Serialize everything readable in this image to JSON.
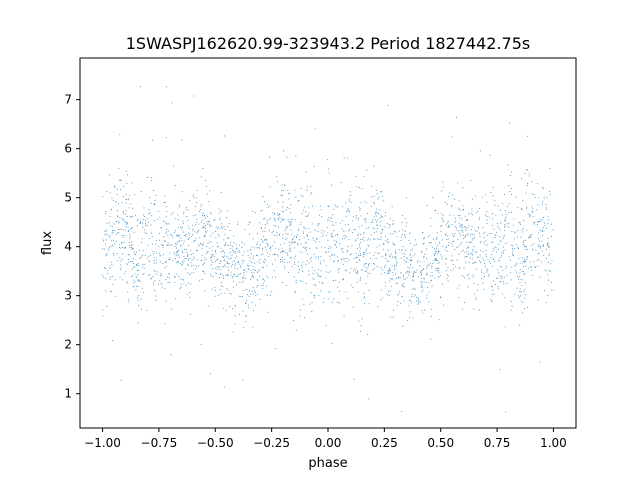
{
  "chart_data": {
    "type": "scatter",
    "title": "1SWASPJ162620.99-323943.2 Period 1827442.75s",
    "xlabel": "phase",
    "ylabel": "flux",
    "xlim": [
      -1.1,
      1.1
    ],
    "ylim": [
      0.3,
      7.85
    ],
    "x_ticks": [
      -1.0,
      -0.75,
      -0.5,
      -0.25,
      0.0,
      0.25,
      0.5,
      0.75,
      1.0
    ],
    "x_tick_labels": [
      "−1.00",
      "−0.75",
      "−0.50",
      "−0.25",
      "0.00",
      "0.25",
      "0.50",
      "0.75",
      "1.00"
    ],
    "y_ticks": [
      1,
      2,
      3,
      4,
      5,
      6,
      7
    ],
    "y_tick_labels": [
      "1",
      "2",
      "3",
      "4",
      "5",
      "6",
      "7"
    ],
    "grid": false,
    "point_color": "#1f77b4",
    "series": [
      {
        "phase_range": [
          -1.0,
          1.0
        ],
        "mirrored_about_zero": true,
        "typical_flux_range": [
          2.6,
          5.6
        ],
        "mean_flux": 4.0,
        "outlier_flux_range": [
          0.6,
          7.5
        ],
        "envelope": [
          {
            "phase": 0.0,
            "mean": 4.1,
            "spread": 0.8
          },
          {
            "phase": 0.05,
            "mean": 3.8,
            "spread": 0.7
          },
          {
            "phase": 0.1,
            "mean": 4.3,
            "spread": 0.8
          },
          {
            "phase": 0.15,
            "mean": 4.0,
            "spread": 0.7
          },
          {
            "phase": 0.2,
            "mean": 4.4,
            "spread": 0.6
          },
          {
            "phase": 0.25,
            "mean": 4.0,
            "spread": 0.6
          },
          {
            "phase": 0.3,
            "mean": 3.8,
            "spread": 0.6
          },
          {
            "phase": 0.35,
            "mean": 3.6,
            "spread": 0.6
          },
          {
            "phase": 0.4,
            "mean": 3.4,
            "spread": 0.5
          },
          {
            "phase": 0.45,
            "mean": 3.7,
            "spread": 0.6
          },
          {
            "phase": 0.5,
            "mean": 3.9,
            "spread": 0.6
          },
          {
            "phase": 0.55,
            "mean": 4.3,
            "spread": 0.6
          },
          {
            "phase": 0.6,
            "mean": 4.1,
            "spread": 0.6
          },
          {
            "phase": 0.65,
            "mean": 4.0,
            "spread": 0.6
          },
          {
            "phase": 0.7,
            "mean": 4.0,
            "spread": 0.6
          },
          {
            "phase": 0.75,
            "mean": 3.8,
            "spread": 0.6
          },
          {
            "phase": 0.8,
            "mean": 4.2,
            "spread": 0.8
          },
          {
            "phase": 0.85,
            "mean": 3.5,
            "spread": 0.7
          },
          {
            "phase": 0.9,
            "mean": 4.4,
            "spread": 0.8
          },
          {
            "phase": 0.95,
            "mean": 4.2,
            "spread": 0.7
          },
          {
            "phase": 1.0,
            "mean": 3.9,
            "spread": 0.7
          }
        ]
      }
    ]
  }
}
